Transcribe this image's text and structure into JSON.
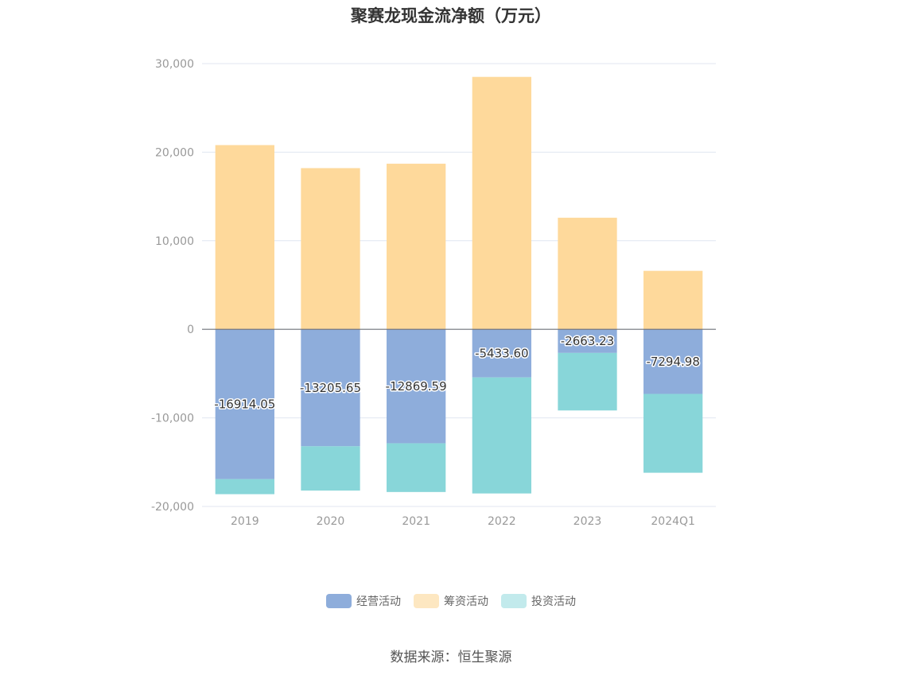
{
  "chart_data": {
    "type": "bar",
    "stacked": true,
    "title": "聚赛龙现金流净额（万元）",
    "categories": [
      "2019",
      "2020",
      "2021",
      "2022",
      "2023",
      "2024Q1"
    ],
    "ylim": [
      -20000,
      30000
    ],
    "yticks": [
      30000,
      20000,
      10000,
      0,
      -10000,
      -20000
    ],
    "ytick_labels": [
      "30,000",
      "20,000",
      "10,000",
      "0",
      "-10,000",
      "-20,000"
    ],
    "grid": true,
    "legend_position": "bottom",
    "series": [
      {
        "name": "经营活动",
        "color": "#8eaddb",
        "values": [
          -16914.05,
          -13205.65,
          -12869.59,
          -5433.6,
          -2663.23,
          -7294.98
        ],
        "labels": [
          "-16914.05",
          "-13205.65",
          "-12869.59",
          "-5433.60",
          "-2663.23",
          "-7294.98"
        ]
      },
      {
        "name": "筹资活动",
        "color": "#fed99b",
        "values": [
          20800,
          18200,
          18700,
          28500,
          12600,
          6600
        ]
      },
      {
        "name": "投资活动",
        "color": "#88d6d9",
        "values": [
          -1700,
          -5000,
          -5500,
          -13100,
          -6500,
          -8900
        ]
      }
    ]
  },
  "legend": {
    "items": [
      {
        "label": "经营活动",
        "color": "#8eaddb"
      },
      {
        "label": "筹资活动",
        "color": "#fde7c1"
      },
      {
        "label": "投资活动",
        "color": "#c2eaec"
      }
    ]
  },
  "source": "数据来源：恒生聚源"
}
